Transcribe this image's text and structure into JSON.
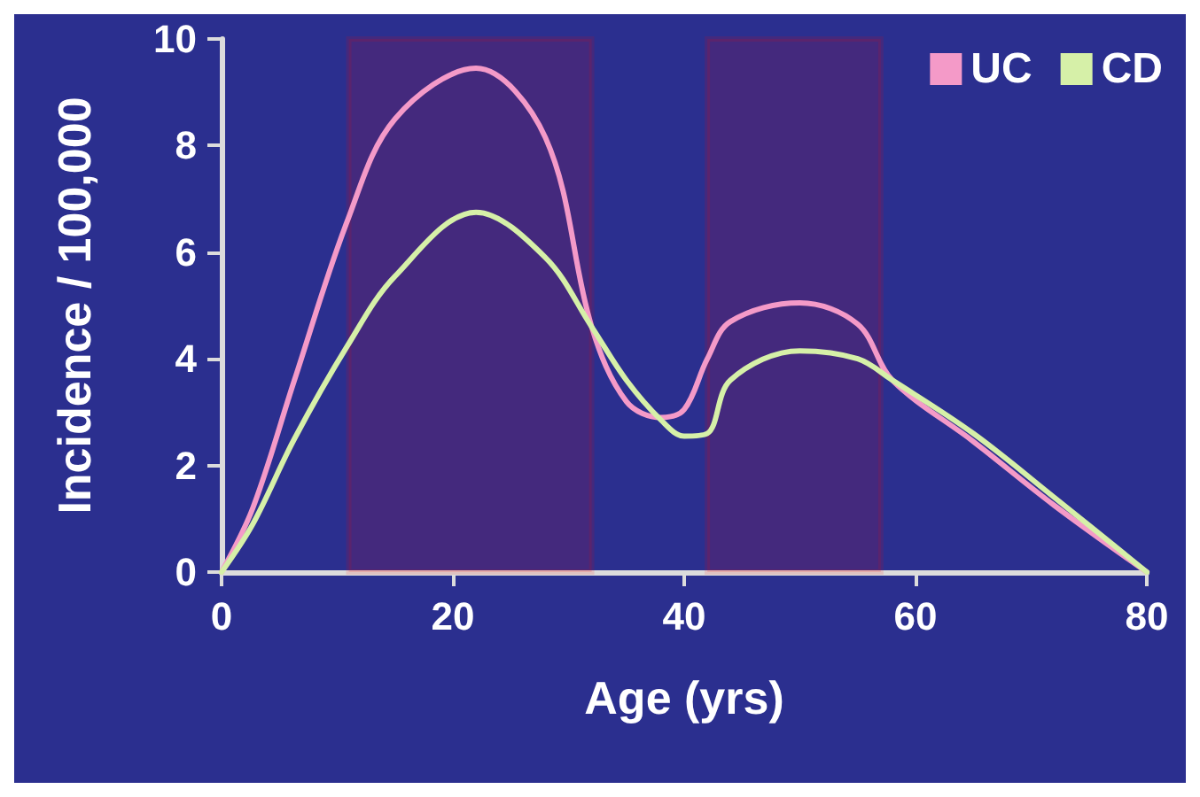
{
  "chart_data": {
    "type": "line",
    "xlabel": "Age (yrs)",
    "ylabel": "Incidence / 100,000",
    "series": [
      {
        "name": "UC",
        "color": "#f49ac8",
        "x": [
          0,
          2.7,
          6.3,
          10.9,
          15,
          22,
          28,
          32,
          35,
          38,
          40,
          42,
          44,
          50,
          55,
          58,
          65,
          72,
          80
        ],
        "values": [
          0,
          1.2,
          3.6,
          6.6,
          8.5,
          9.45,
          8.15,
          4.6,
          3.2,
          2.9,
          3.05,
          4.0,
          4.7,
          5.05,
          4.65,
          3.6,
          2.45,
          1.25,
          0
        ]
      },
      {
        "name": "CD",
        "color": "#d6f0a8",
        "x": [
          0,
          2.7,
          6.3,
          10.9,
          15,
          22,
          28,
          32,
          35,
          38,
          40,
          42,
          44,
          50,
          55,
          58,
          65,
          72,
          80
        ],
        "values": [
          0,
          0.9,
          2.5,
          4.25,
          5.55,
          6.75,
          5.9,
          4.6,
          3.6,
          2.85,
          2.55,
          2.6,
          3.6,
          4.15,
          4.0,
          3.6,
          2.6,
          1.4,
          0
        ]
      }
    ],
    "xlim": [
      0,
      80
    ],
    "xticks": [
      0,
      20,
      40,
      60,
      80
    ],
    "ylim": [
      0,
      10
    ],
    "yticks": [
      0,
      2,
      4,
      6,
      8,
      10
    ],
    "bands": [
      {
        "axis": "x",
        "from": 11,
        "to": 32,
        "color": "#ff0000"
      },
      {
        "axis": "x",
        "from": 42,
        "to": 57,
        "color": "#ff0000"
      }
    ],
    "grid": false,
    "legend": "top right",
    "marker": "none",
    "line_style": "solid"
  }
}
